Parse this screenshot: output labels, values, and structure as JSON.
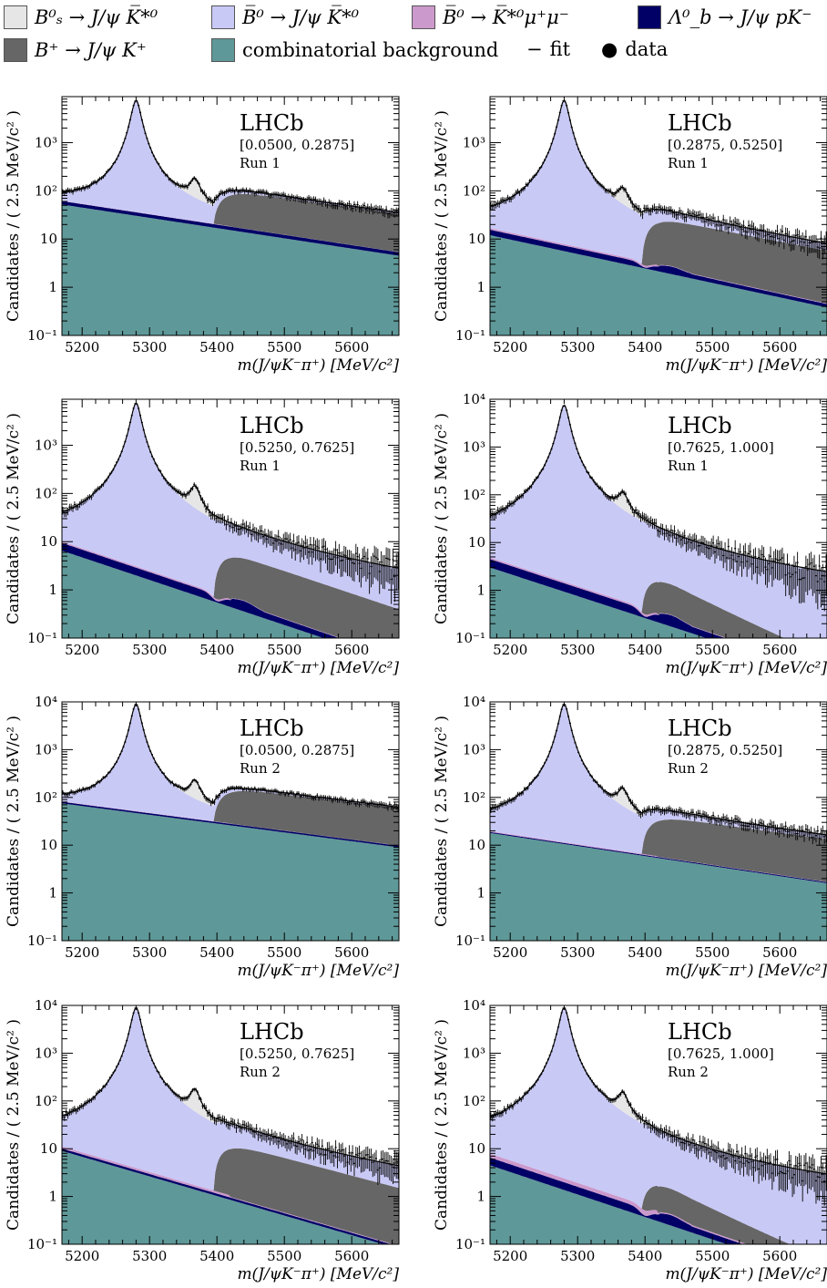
{
  "legend": {
    "items": [
      {
        "label": "B⁰ₛ → J/ψ K̅*⁰",
        "color": "#e6e6e6",
        "kind": "swatch"
      },
      {
        "label": "B̅⁰ → J/ψ K̅*⁰",
        "color": "#c9c9f6",
        "kind": "swatch"
      },
      {
        "label": "B̅⁰ → K̅*⁰μ⁺μ⁻",
        "color": "#cc99cc",
        "kind": "swatch"
      },
      {
        "label": "Λ⁰_b → J/ψ pK⁻",
        "color": "#000066",
        "kind": "swatch"
      },
      {
        "label": "B⁺ → J/ψ K⁺",
        "color": "#666666",
        "kind": "swatch"
      },
      {
        "label": "combinatorial background",
        "color": "#5f9898",
        "kind": "swatch"
      },
      {
        "label": "fit",
        "color": "#000000",
        "kind": "line"
      },
      {
        "label": "data",
        "color": "#000000",
        "kind": "point"
      }
    ]
  },
  "axes": {
    "xlabel": "m(J/ψK⁻π⁺) [MeV/c²]",
    "ylabel": "Candidates / ( 2.5 MeV/c² )",
    "xticks": [
      "5200",
      "5300",
      "5400",
      "5500",
      "5600"
    ],
    "yticks": [
      "10⁻¹",
      "1",
      "10",
      "10²",
      "10³",
      "10⁴"
    ]
  },
  "chart_data": [
    {
      "type": "area",
      "experiment": "LHCb",
      "bin": "[0.0500, 0.2875]",
      "run": "Run 1",
      "xlim": [
        5170,
        5670
      ],
      "ylim": [
        0.1,
        9000
      ],
      "log_y": true,
      "show_top_tick": false,
      "model": {
        "peak_b0": 7500,
        "peak_bs": 110,
        "comb_start": 52,
        "comb_end": 4.5,
        "bplus_level": 90,
        "lambdab": 0.18,
        "mumu": 0.02,
        "lb_dip": false,
        "tail_end": 1.0
      }
    },
    {
      "type": "area",
      "experiment": "LHCb",
      "bin": "[0.2875, 0.5250]",
      "run": "Run 1",
      "xlim": [
        5170,
        5670
      ],
      "ylim": [
        0.1,
        9000
      ],
      "log_y": true,
      "show_top_tick": false,
      "model": {
        "peak_b0": 7500,
        "peak_bs": 65,
        "comb_start": 12,
        "comb_end": 0.38,
        "bplus_level": 28,
        "lambdab": 0.3,
        "mumu": 0.1,
        "lb_dip": true,
        "tail_end": 1.0
      }
    },
    {
      "type": "area",
      "experiment": "LHCb",
      "bin": "[0.5250, 0.7625]",
      "run": "Run 1",
      "xlim": [
        5170,
        5670
      ],
      "ylim": [
        0.1,
        9000
      ],
      "log_y": true,
      "show_top_tick": false,
      "model": {
        "peak_b0": 7500,
        "peak_bs": 95,
        "comb_start": 6.5,
        "comb_end": 0.03,
        "bplus_level": 6.5,
        "lambdab": 0.45,
        "mumu": 0.1,
        "lb_dip": true,
        "tail_end": 0.75
      }
    },
    {
      "type": "area",
      "experiment": "LHCb",
      "bin": "[0.7625, 1.000]",
      "run": "Run 1",
      "xlim": [
        5170,
        5670
      ],
      "ylim": [
        0.1,
        10000
      ],
      "log_y": true,
      "show_top_tick": true,
      "model": {
        "peak_b0": 7500,
        "peak_bs": 65,
        "comb_start": 3,
        "comb_end": 0.015,
        "bplus_level": 2.2,
        "lambdab": 0.5,
        "mumu": 0.12,
        "lb_dip": true,
        "tail_end": 0.12
      }
    },
    {
      "type": "area",
      "experiment": "LHCb",
      "bin": "[0.0500, 0.2875]",
      "run": "Run 2",
      "xlim": [
        5170,
        5670
      ],
      "ylim": [
        0.1,
        10000
      ],
      "log_y": true,
      "show_top_tick": true,
      "model": {
        "peak_b0": 9000,
        "peak_bs": 140,
        "comb_start": 75,
        "comb_end": 9,
        "bplus_level": 140,
        "lambdab": 0.08,
        "mumu": 0.02,
        "lb_dip": false,
        "tail_end": 1.0
      }
    },
    {
      "type": "area",
      "experiment": "LHCb",
      "bin": "[0.2875, 0.5250]",
      "run": "Run 2",
      "xlim": [
        5170,
        5670
      ],
      "ylim": [
        0.1,
        10000
      ],
      "log_y": true,
      "show_top_tick": true,
      "model": {
        "peak_b0": 9000,
        "peak_bs": 90,
        "comb_start": 18,
        "comb_end": 1.6,
        "bplus_level": 38,
        "lambdab": 0.05,
        "mumu": 0.04,
        "lb_dip": false,
        "tail_end": 1.0
      }
    },
    {
      "type": "area",
      "experiment": "LHCb",
      "bin": "[0.5250, 0.7625]",
      "run": "Run 2",
      "xlim": [
        5170,
        5670
      ],
      "ylim": [
        0.1,
        10000
      ],
      "log_y": true,
      "show_top_tick": true,
      "model": {
        "peak_b0": 9000,
        "peak_bs": 120,
        "comb_start": 9,
        "comb_end": 0.08,
        "bplus_level": 14,
        "lambdab": 0.12,
        "mumu": 0.12,
        "lb_dip": false,
        "tail_end": 1.0
      }
    },
    {
      "type": "area",
      "experiment": "LHCb",
      "bin": "[0.7625, 1.000]",
      "run": "Run 2",
      "xlim": [
        5170,
        5670
      ],
      "ylim": [
        0.1,
        10000
      ],
      "log_y": true,
      "show_top_tick": true,
      "model": {
        "peak_b0": 9000,
        "peak_bs": 95,
        "comb_start": 4.5,
        "comb_end": 0.02,
        "bplus_level": 2.2,
        "lambdab": 0.45,
        "mumu": 0.3,
        "lb_dip": true,
        "tail_end": 0.12
      }
    }
  ]
}
